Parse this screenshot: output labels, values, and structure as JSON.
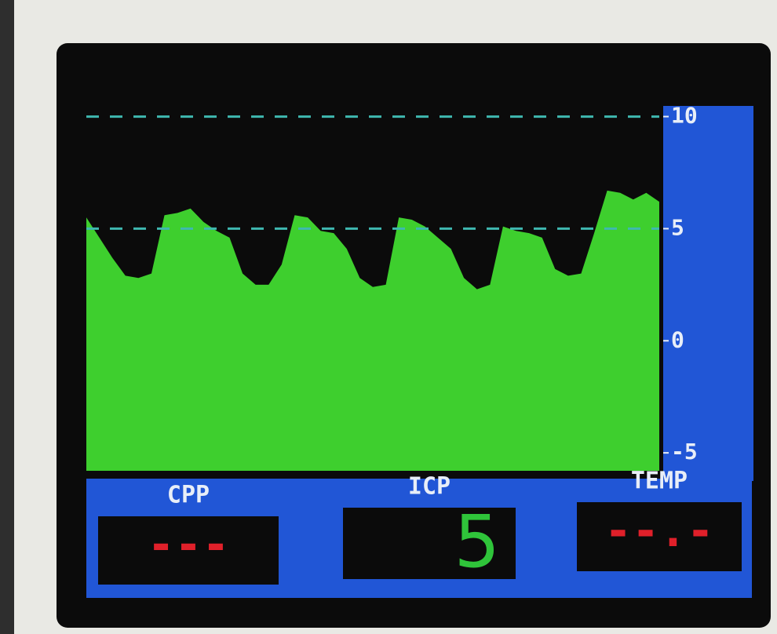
{
  "chart_data": {
    "type": "area",
    "color": "#3ecf2e",
    "values": [
      5.5,
      4.6,
      3.7,
      2.9,
      2.8,
      3.0,
      5.6,
      5.7,
      5.9,
      5.3,
      4.9,
      4.6,
      3.0,
      2.5,
      2.5,
      3.4,
      5.6,
      5.5,
      4.9,
      4.8,
      4.1,
      2.8,
      2.4,
      2.5,
      5.5,
      5.4,
      5.1,
      4.6,
      4.1,
      2.8,
      2.3,
      2.5,
      5.1,
      4.9,
      4.8,
      4.6,
      3.2,
      2.9,
      3.0,
      4.8,
      6.7,
      6.6,
      6.3,
      6.6,
      6.2
    ],
    "ylim": [
      -5.8,
      11.7
    ],
    "yticks": [
      10,
      5,
      0,
      -5
    ],
    "reference_lines": [
      10,
      5
    ]
  },
  "panels": [
    {
      "label": "CPP",
      "value": "---"
    },
    {
      "label": "ICP",
      "value": "5"
    },
    {
      "label": "TEMP",
      "value": "--.-"
    }
  ]
}
